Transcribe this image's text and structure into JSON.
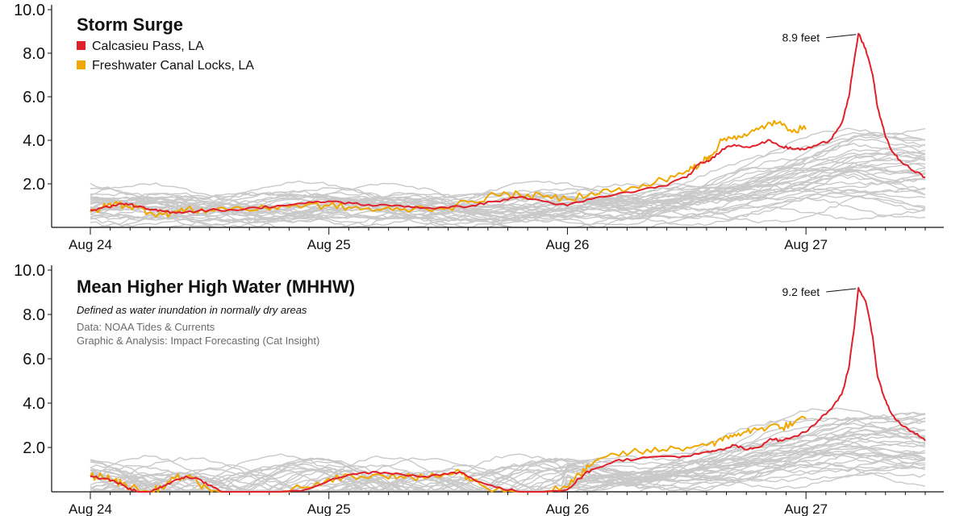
{
  "chart_data": [
    {
      "type": "line",
      "title": "Storm Surge",
      "ylim": [
        0,
        10
      ],
      "yticks": [
        "2.0",
        "4.0",
        "6.0",
        "8.0",
        "10.0"
      ],
      "xlim": [
        0,
        3.5
      ],
      "xticks": [
        {
          "x": 0,
          "label": "Aug 24"
        },
        {
          "x": 1,
          "label": "Aug 25"
        },
        {
          "x": 2,
          "label": "Aug 26"
        },
        {
          "x": 3,
          "label": "Aug 27"
        }
      ],
      "legend": [
        {
          "name": "Calcasieu Pass, LA",
          "color": "#e0202a"
        },
        {
          "name": "Freshwater Canal Locks, LA",
          "color": "#f0a800"
        }
      ],
      "annotation": {
        "text": "8.9 feet",
        "x": 3.22,
        "y": 8.9
      },
      "series": [
        {
          "name": "Calcasieu Pass, LA",
          "color": "#e0202a",
          "x": [
            0.0,
            0.05,
            0.1,
            0.15,
            0.2,
            0.25,
            0.3,
            0.35,
            0.4,
            0.5,
            0.6,
            0.7,
            0.8,
            0.9,
            1.0,
            1.1,
            1.2,
            1.3,
            1.4,
            1.5,
            1.6,
            1.7,
            1.8,
            1.9,
            2.0,
            2.1,
            2.2,
            2.3,
            2.4,
            2.5,
            2.55,
            2.6,
            2.65,
            2.7,
            2.75,
            2.8,
            2.85,
            2.9,
            2.95,
            3.0,
            3.05,
            3.1,
            3.15,
            3.18,
            3.2,
            3.22,
            3.25,
            3.28,
            3.3,
            3.33,
            3.36,
            3.4,
            3.45,
            3.5
          ],
          "y": [
            0.8,
            0.9,
            1.0,
            1.1,
            0.95,
            0.8,
            0.75,
            0.7,
            0.7,
            0.8,
            0.8,
            0.9,
            1.0,
            1.1,
            1.2,
            1.1,
            1.0,
            1.0,
            0.9,
            0.9,
            1.0,
            1.2,
            1.4,
            1.2,
            1.0,
            1.3,
            1.5,
            1.7,
            1.9,
            2.3,
            2.9,
            3.1,
            3.6,
            3.8,
            3.7,
            3.8,
            4.0,
            3.7,
            3.6,
            3.6,
            3.8,
            4.0,
            4.8,
            6.0,
            7.5,
            8.9,
            8.2,
            7.0,
            5.5,
            4.3,
            3.5,
            3.0,
            2.6,
            2.3
          ]
        },
        {
          "name": "Freshwater Canal Locks, LA",
          "color": "#f0a800",
          "x": [
            0.0,
            0.05,
            0.1,
            0.15,
            0.2,
            0.25,
            0.3,
            0.35,
            0.4,
            0.5,
            0.6,
            0.7,
            0.8,
            0.9,
            1.0,
            1.1,
            1.2,
            1.3,
            1.4,
            1.5,
            1.6,
            1.7,
            1.8,
            1.9,
            2.0,
            2.1,
            2.2,
            2.3,
            2.4,
            2.5,
            2.55,
            2.58,
            2.6,
            2.65,
            2.7,
            2.75,
            2.8,
            2.85,
            2.9,
            2.95,
            3.0
          ],
          "y": [
            0.7,
            0.9,
            1.1,
            1.0,
            0.9,
            0.7,
            0.6,
            0.7,
            0.8,
            0.8,
            0.9,
            0.8,
            1.0,
            1.0,
            1.0,
            0.9,
            0.8,
            0.8,
            0.9,
            0.9,
            1.2,
            1.5,
            1.5,
            1.4,
            1.3,
            1.6,
            1.7,
            1.8,
            2.2,
            2.6,
            2.8,
            3.2,
            3.3,
            4.0,
            4.2,
            4.2,
            4.5,
            4.8,
            4.7,
            4.5,
            4.5
          ]
        }
      ]
    },
    {
      "type": "line",
      "title": "Mean Higher High Water (MHHW)",
      "subtitle": "Defined as water inundation in normally dry areas",
      "credits": [
        "Data: NOAA Tides & Currents",
        "Graphic & Analysis: Impact Forecasting (Cat Insight)"
      ],
      "ylim": [
        0,
        10
      ],
      "yticks": [
        "2.0",
        "4.0",
        "6.0",
        "8.0",
        "10.0"
      ],
      "xlim": [
        0,
        3.5
      ],
      "xticks": [
        {
          "x": 0,
          "label": "Aug 24"
        },
        {
          "x": 1,
          "label": "Aug 25"
        },
        {
          "x": 2,
          "label": "Aug 26"
        },
        {
          "x": 3,
          "label": "Aug 27"
        }
      ],
      "annotation": {
        "text": "9.2 feet",
        "x": 3.22,
        "y": 9.2
      },
      "series": [
        {
          "name": "Calcasieu Pass, LA",
          "color": "#e0202a",
          "x": [
            0.0,
            0.05,
            0.1,
            0.15,
            0.2,
            0.25,
            0.3,
            0.35,
            0.4,
            0.45,
            0.5,
            0.55,
            0.6,
            0.7,
            0.8,
            0.9,
            1.0,
            1.1,
            1.2,
            1.3,
            1.4,
            1.5,
            1.55,
            1.6,
            1.7,
            1.8,
            1.9,
            2.0,
            2.05,
            2.1,
            2.2,
            2.3,
            2.4,
            2.5,
            2.6,
            2.65,
            2.7,
            2.75,
            2.8,
            2.85,
            2.9,
            3.0,
            3.05,
            3.1,
            3.15,
            3.18,
            3.2,
            3.22,
            3.25,
            3.28,
            3.3,
            3.33,
            3.36,
            3.4,
            3.45,
            3.5
          ],
          "y": [
            0.7,
            0.6,
            0.5,
            0.2,
            0.0,
            0.0,
            0.2,
            0.5,
            0.7,
            0.6,
            0.3,
            0.0,
            0.0,
            0.0,
            0.0,
            0.1,
            0.5,
            0.8,
            0.9,
            0.8,
            0.7,
            0.8,
            0.9,
            0.6,
            0.2,
            0.0,
            0.0,
            0.1,
            0.6,
            1.0,
            1.4,
            1.5,
            1.6,
            1.6,
            1.8,
            1.9,
            2.1,
            1.9,
            2.0,
            2.4,
            2.3,
            2.7,
            3.2,
            3.7,
            4.4,
            5.6,
            7.2,
            9.2,
            8.6,
            7.0,
            5.2,
            4.2,
            3.5,
            3.0,
            2.7,
            2.3
          ]
        },
        {
          "name": "Freshwater Canal Locks, LA",
          "color": "#f0a800",
          "x": [
            0.0,
            0.05,
            0.1,
            0.15,
            0.2,
            0.25,
            0.3,
            0.35,
            0.4,
            0.45,
            0.5,
            0.55,
            0.6,
            0.7,
            0.8,
            0.9,
            1.0,
            1.1,
            1.2,
            1.3,
            1.4,
            1.5,
            1.55,
            1.6,
            1.7,
            1.8,
            1.9,
            2.0,
            2.05,
            2.1,
            2.2,
            2.3,
            2.4,
            2.5,
            2.6,
            2.65,
            2.7,
            2.75,
            2.8,
            2.85,
            2.9,
            2.95,
            3.0
          ],
          "y": [
            0.7,
            0.7,
            0.5,
            0.3,
            0.1,
            0.0,
            0.2,
            0.6,
            0.7,
            0.4,
            0.1,
            0.0,
            0.0,
            0.0,
            0.0,
            0.2,
            0.6,
            0.7,
            0.8,
            0.7,
            0.6,
            0.8,
            0.9,
            0.5,
            0.1,
            0.0,
            0.0,
            0.2,
            0.8,
            1.2,
            1.7,
            1.8,
            1.9,
            2.0,
            2.2,
            2.3,
            2.6,
            2.7,
            2.8,
            3.0,
            2.9,
            3.1,
            3.3
          ]
        }
      ]
    }
  ]
}
